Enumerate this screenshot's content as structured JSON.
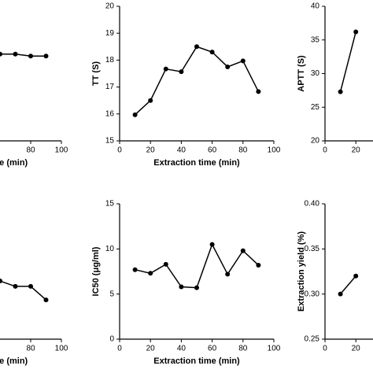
{
  "chart_data": [
    {
      "type": "line",
      "xlabel": "Extraction time (min)",
      "x": [
        60,
        70,
        80,
        90
      ],
      "values": [
        12.9,
        12.9,
        12.6,
        12.6
      ],
      "xlim": [
        0,
        100
      ],
      "ylim": [
        0,
        20
      ],
      "xticks": [
        80,
        100
      ],
      "color": "#000000"
    },
    {
      "type": "line",
      "xlabel": "Extraction time (min)",
      "ylabel": "TT (S)",
      "x": [
        10,
        20,
        30,
        40,
        50,
        60,
        70,
        80,
        90
      ],
      "values": [
        15.97,
        16.5,
        17.67,
        17.57,
        18.5,
        18.3,
        17.75,
        17.97,
        16.83
      ],
      "xlim": [
        0,
        100
      ],
      "ylim": [
        15,
        20
      ],
      "xticks": [
        0,
        20,
        40,
        60,
        80,
        100
      ],
      "yticks": [
        15,
        16,
        17,
        18,
        19,
        20
      ],
      "color": "#000000"
    },
    {
      "type": "line",
      "ylabel": "APTT (S)",
      "x": [
        10,
        20
      ],
      "values": [
        27.3,
        36.2
      ],
      "xlim": [
        0,
        100
      ],
      "ylim": [
        20,
        40
      ],
      "xticks": [
        0,
        20
      ],
      "yticks": [
        20,
        25,
        30,
        35,
        40
      ],
      "color": "#000000"
    },
    {
      "type": "line",
      "xlabel": "Extraction time (min)",
      "x": [
        60,
        70,
        80,
        90
      ],
      "values": [
        8.6,
        7.8,
        7.8,
        5.8
      ],
      "xlim": [
        0,
        100
      ],
      "ylim": [
        0,
        20
      ],
      "xticks": [
        80,
        100
      ],
      "color": "#000000"
    },
    {
      "type": "line",
      "xlabel": "Extraction time (min)",
      "ylabel": "IC50 (μg/ml)",
      "x": [
        10,
        20,
        30,
        40,
        50,
        60,
        70,
        80,
        90
      ],
      "values": [
        7.7,
        7.3,
        8.3,
        5.8,
        5.7,
        10.5,
        7.2,
        9.8,
        8.2
      ],
      "xlim": [
        0,
        100
      ],
      "ylim": [
        0,
        15
      ],
      "xticks": [
        0,
        20,
        40,
        60,
        80,
        100
      ],
      "yticks": [
        0,
        5,
        10,
        15
      ],
      "color": "#000000"
    },
    {
      "type": "line",
      "ylabel": "Extraction yield (%)",
      "x": [
        10,
        20
      ],
      "values": [
        0.3,
        0.32
      ],
      "xlim": [
        0,
        100
      ],
      "ylim": [
        0.25,
        0.4
      ],
      "xticks": [
        0,
        20
      ],
      "yticks": [
        {
          "value": 0.25,
          "label": "0.25"
        },
        {
          "value": 0.3,
          "label": "0.30"
        },
        {
          "value": 0.35,
          "label": "0.35"
        },
        {
          "value": 0.4,
          "label": "0.40"
        }
      ],
      "color": "#000000"
    }
  ]
}
